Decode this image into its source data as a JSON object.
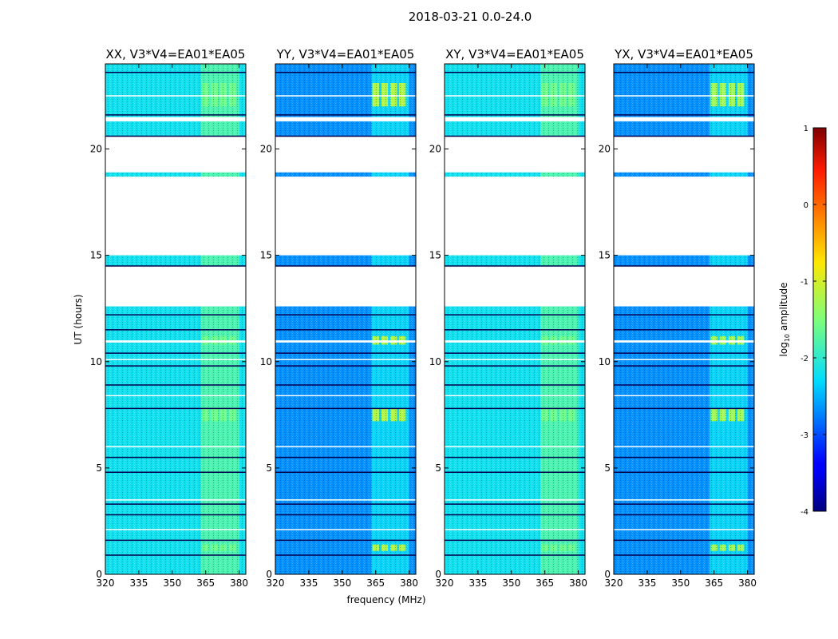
{
  "figure_title": "2018-03-21 0.0-24.0",
  "chart_data": {
    "type": "heatmap",
    "panel_titles": [
      "XX, V3*V4=EA01*EA05",
      "YY, V3*V4=EA01*EA05",
      "XY, V3*V4=EA01*EA05",
      "YX, V3*V4=EA01*EA05"
    ],
    "xlabel": "frequency (MHz)",
    "ylabel": "UT (hours)",
    "xlim": [
      320,
      383
    ],
    "ylim": [
      0,
      24
    ],
    "xticks": [
      320,
      335,
      350,
      365,
      380
    ],
    "yticks": [
      0,
      5,
      10,
      15,
      20
    ],
    "colorbar": {
      "label_main": "log",
      "label_sub": "10",
      "label_rest": " amplitude",
      "range": [
        -4,
        1
      ],
      "ticks": [
        1,
        0,
        -1,
        -2,
        -3,
        -4
      ],
      "colormap": "jet"
    },
    "flagged_ut_gaps": [
      [
        21.3,
        21.5
      ],
      [
        20.6,
        18.9
      ],
      [
        18.7,
        15.0
      ],
      [
        14.5,
        12.6
      ],
      [
        11.0,
        10.9
      ]
    ],
    "rfi_band_mhz": [
      363,
      380
    ],
    "baseline_log10_amplitude": {
      "XX": -2.2,
      "YY": -2.7,
      "XY": -2.2,
      "YX": -2.7
    },
    "rfi_log10_amplitude": {
      "XX": -1.6,
      "YY": -1.2,
      "XY": -1.6,
      "YX": -1.3
    }
  }
}
